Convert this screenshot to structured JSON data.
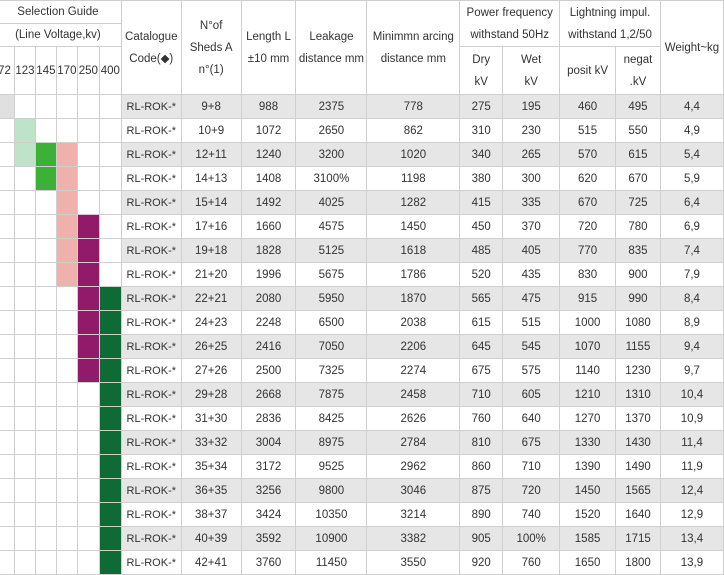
{
  "header": {
    "selection_guide": "Selection Guide",
    "line_voltage": "(Line Voltage,kv)",
    "voltages": [
      "72",
      "123",
      "145",
      "170",
      "250",
      "400"
    ],
    "catalogue_code": "Catalogue",
    "catalogue_code_2": "Code(◆)",
    "sheds_1": "N°of",
    "sheds_2": "Sheds A",
    "sheds_3": "n°(1)",
    "length_1": "Length L",
    "length_2": "±10 mm",
    "leakage_1": "Leakage",
    "leakage_2": "distance mm",
    "arcing_1": "Minimmn arcing",
    "arcing_2": "distance mm",
    "power_1": "Power frequency",
    "power_2": "withstand 50Hz",
    "dry_1": "Dry",
    "dry_2": "kV",
    "wet_1": "Wet",
    "wet_2": "kV",
    "lightning_1": "Lightning impul.",
    "lightning_2": "withstand 1,2/50",
    "posit": "posit kV",
    "negat_1": "negat",
    "negat_2": ".kV",
    "weight": "Weight~kg"
  },
  "colors": {
    "v72": "#e0e0e0",
    "v123": "#bfe3c9",
    "v145": "#3db037",
    "v170": "#f0b1ad",
    "v250": "#921a6b",
    "v400": "#0f6b36",
    "grey_row": "#e6e6e6"
  },
  "selection_marks": [
    [
      1,
      0,
      0,
      0,
      0,
      0
    ],
    [
      0,
      1,
      0,
      0,
      0,
      0
    ],
    [
      0,
      1,
      1,
      1,
      0,
      0
    ],
    [
      0,
      0,
      1,
      1,
      0,
      0
    ],
    [
      0,
      0,
      0,
      1,
      0,
      0
    ],
    [
      0,
      0,
      0,
      1,
      1,
      0
    ],
    [
      0,
      0,
      0,
      1,
      1,
      0
    ],
    [
      0,
      0,
      0,
      1,
      1,
      0
    ],
    [
      0,
      0,
      0,
      0,
      1,
      1
    ],
    [
      0,
      0,
      0,
      0,
      1,
      1
    ],
    [
      0,
      0,
      0,
      0,
      1,
      1
    ],
    [
      0,
      0,
      0,
      0,
      1,
      1
    ],
    [
      0,
      0,
      0,
      0,
      0,
      1
    ],
    [
      0,
      0,
      0,
      0,
      0,
      1
    ],
    [
      0,
      0,
      0,
      0,
      0,
      1
    ],
    [
      0,
      0,
      0,
      0,
      0,
      1
    ],
    [
      0,
      0,
      0,
      0,
      0,
      1
    ],
    [
      0,
      0,
      0,
      0,
      0,
      1
    ],
    [
      0,
      0,
      0,
      0,
      0,
      1
    ],
    [
      0,
      0,
      0,
      0,
      0,
      1
    ]
  ],
  "rows": [
    {
      "code": "RL-ROK-*",
      "sheds": "9+8",
      "length": "988",
      "leakage": "2375",
      "arcing": "778",
      "dry": "275",
      "wet": "195",
      "posit": "460",
      "negat": "495",
      "weight": "4,4"
    },
    {
      "code": "RL-ROK-*",
      "sheds": "10+9",
      "length": "1072",
      "leakage": "2650",
      "arcing": "862",
      "dry": "310",
      "wet": "230",
      "posit": "515",
      "negat": "550",
      "weight": "4,9"
    },
    {
      "code": "RL-ROK-*",
      "sheds": "12+11",
      "length": "1240",
      "leakage": "3200",
      "arcing": "1020",
      "dry": "340",
      "wet": "265",
      "posit": "570",
      "negat": "615",
      "weight": "5,4"
    },
    {
      "code": "RL-ROK-*",
      "sheds": "14+13",
      "length": "1408",
      "leakage": "3100%",
      "arcing": "1198",
      "dry": "380",
      "wet": "300",
      "posit": "620",
      "negat": "670",
      "weight": "5,9"
    },
    {
      "code": "RL-ROK-*",
      "sheds": "15+14",
      "length": "1492",
      "leakage": "4025",
      "arcing": "1282",
      "dry": "415",
      "wet": "335",
      "posit": "670",
      "negat": "725",
      "weight": "6,4"
    },
    {
      "code": "RL-ROK-*",
      "sheds": "17+16",
      "length": "1660",
      "leakage": "4575",
      "arcing": "1450",
      "dry": "450",
      "wet": "370",
      "posit": "720",
      "negat": "780",
      "weight": "6,9"
    },
    {
      "code": "RL-ROK-*",
      "sheds": "19+18",
      "length": "1828",
      "leakage": "5125",
      "arcing": "1618",
      "dry": "485",
      "wet": "405",
      "posit": "770",
      "negat": "835",
      "weight": "7,4"
    },
    {
      "code": "RL-ROK-*",
      "sheds": "21+20",
      "length": "1996",
      "leakage": "5675",
      "arcing": "1786",
      "dry": "520",
      "wet": "435",
      "posit": "830",
      "negat": "900",
      "weight": "7,9"
    },
    {
      "code": "RL-ROK-*",
      "sheds": "22+21",
      "length": "2080",
      "leakage": "5950",
      "arcing": "1870",
      "dry": "565",
      "wet": "475",
      "posit": "915",
      "negat": "990",
      "weight": "8,4"
    },
    {
      "code": "RL-ROK-*",
      "sheds": "24+23",
      "length": "2248",
      "leakage": "6500",
      "arcing": "2038",
      "dry": "615",
      "wet": "515",
      "posit": "1000",
      "negat": "1080",
      "weight": "8,9"
    },
    {
      "code": "RL-ROK-*",
      "sheds": "26+25",
      "length": "2416",
      "leakage": "7050",
      "arcing": "2206",
      "dry": "645",
      "wet": "545",
      "posit": "1070",
      "negat": "1155",
      "weight": "9,4"
    },
    {
      "code": "RL-ROK-*",
      "sheds": "27+26",
      "length": "2500",
      "leakage": "7325",
      "arcing": "2274",
      "dry": "675",
      "wet": "575",
      "posit": "1140",
      "negat": "1230",
      "weight": "9,7"
    },
    {
      "code": "RL-ROK-*",
      "sheds": "29+28",
      "length": "2668",
      "leakage": "7875",
      "arcing": "2458",
      "dry": "710",
      "wet": "605",
      "posit": "1210",
      "negat": "1310",
      "weight": "10,4"
    },
    {
      "code": "RL-ROK-*",
      "sheds": "31+30",
      "length": "2836",
      "leakage": "8425",
      "arcing": "2626",
      "dry": "760",
      "wet": "640",
      "posit": "1270",
      "negat": "1370",
      "weight": "10,9"
    },
    {
      "code": "RL-ROK-*",
      "sheds": "33+32",
      "length": "3004",
      "leakage": "8975",
      "arcing": "2784",
      "dry": "810",
      "wet": "675",
      "posit": "1330",
      "negat": "1430",
      "weight": "11,4"
    },
    {
      "code": "RL-ROK-*",
      "sheds": "35+34",
      "length": "3172",
      "leakage": "9525",
      "arcing": "2962",
      "dry": "860",
      "wet": "710",
      "posit": "1390",
      "negat": "1490",
      "weight": "11,9"
    },
    {
      "code": "RL-ROK-*",
      "sheds": "36+35",
      "length": "3256",
      "leakage": "9800",
      "arcing": "3046",
      "dry": "875",
      "wet": "720",
      "posit": "1450",
      "negat": "1565",
      "weight": "12,4"
    },
    {
      "code": "RL-ROK-*",
      "sheds": "38+37",
      "length": "3424",
      "leakage": "10350",
      "arcing": "3214",
      "dry": "890",
      "wet": "740",
      "posit": "1520",
      "negat": "1640",
      "weight": "12,9"
    },
    {
      "code": "RL-ROK-*",
      "sheds": "40+39",
      "length": "3592",
      "leakage": "10900",
      "arcing": "3382",
      "dry": "905",
      "wet": "100%",
      "posit": "1585",
      "negat": "1715",
      "weight": "13,4"
    },
    {
      "code": "RL-ROK-*",
      "sheds": "42+41",
      "length": "3760",
      "leakage": "11450",
      "arcing": "3550",
      "dry": "920",
      "wet": "760",
      "posit": "1650",
      "negat": "1800",
      "weight": "13,9"
    }
  ]
}
